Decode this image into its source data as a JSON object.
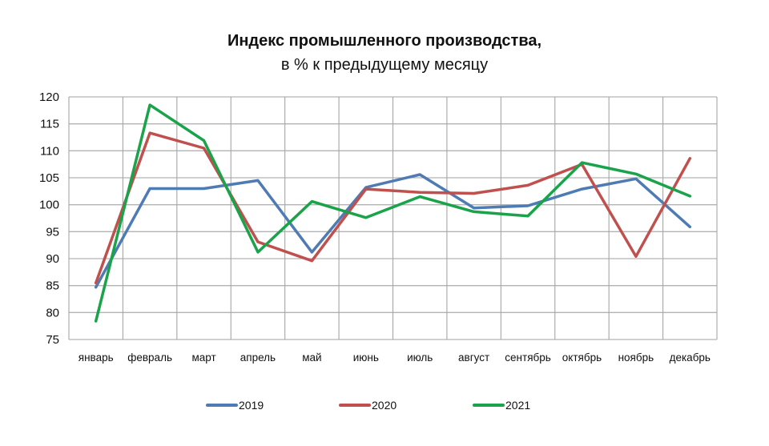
{
  "chart_data": {
    "type": "line",
    "title": "Индекс промышленного производства,",
    "subtitle": "в % к предыдущему месяцу",
    "xlabel": "",
    "ylabel": "",
    "ylim": [
      75,
      120
    ],
    "yticks": [
      75,
      80,
      85,
      90,
      95,
      100,
      105,
      110,
      115,
      120
    ],
    "grid": true,
    "legend_position": "bottom",
    "categories": [
      "январь",
      "февраль",
      "март",
      "апрель",
      "май",
      "июнь",
      "июль",
      "август",
      "сентябрь",
      "октябрь",
      "ноябрь",
      "декабрь"
    ],
    "series": [
      {
        "name": "2019",
        "color": "#4f7bb5",
        "values": [
          84.7,
          103.0,
          103.0,
          104.5,
          91.2,
          103.2,
          105.6,
          99.4,
          99.8,
          102.9,
          104.8,
          95.9
        ]
      },
      {
        "name": "2020",
        "color": "#c0504d",
        "values": [
          85.5,
          113.3,
          110.5,
          93.1,
          89.6,
          102.9,
          102.3,
          102.1,
          103.6,
          107.5,
          90.4,
          108.6
        ]
      },
      {
        "name": "2021",
        "color": "#1aa34a",
        "values": [
          78.4,
          118.5,
          111.9,
          91.2,
          100.6,
          97.6,
          101.5,
          98.7,
          97.9,
          107.8,
          105.7,
          101.6
        ]
      }
    ]
  }
}
